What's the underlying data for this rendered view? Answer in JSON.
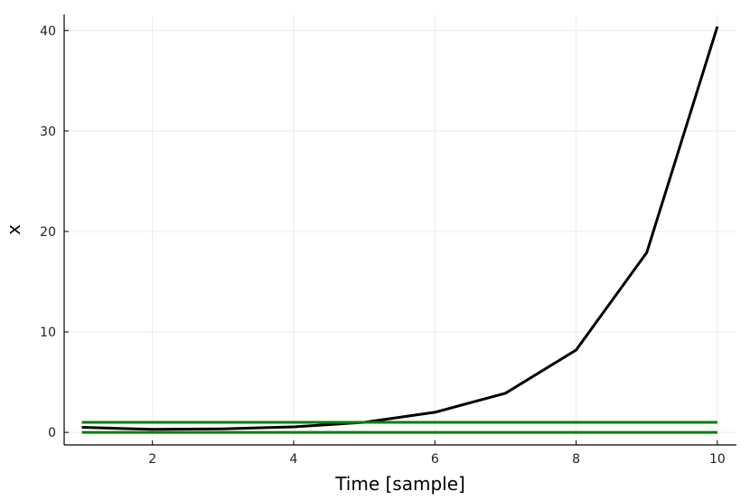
{
  "chart_data": {
    "type": "line",
    "title": "",
    "xlabel": "Time [sample]",
    "ylabel": "x",
    "xlim": [
      0.75,
      10.27
    ],
    "ylim": [
      -1.25,
      41.6
    ],
    "xticks": [
      2,
      4,
      6,
      8,
      10
    ],
    "yticks": [
      0,
      10,
      20,
      30,
      40
    ],
    "grid": true,
    "legend": "none",
    "series": [
      {
        "color": "#000000",
        "x": [
          1,
          2,
          3,
          4,
          5,
          6,
          7,
          8,
          9,
          10
        ],
        "values": [
          0.5,
          0.3,
          0.35,
          0.55,
          1.0,
          2.0,
          3.9,
          8.2,
          17.9,
          40.4
        ]
      },
      {
        "color": "#008000",
        "x": [
          1,
          10
        ],
        "values": [
          1,
          1
        ]
      },
      {
        "color": "#008000",
        "x": [
          1,
          10
        ],
        "values": [
          0,
          0
        ]
      }
    ]
  }
}
